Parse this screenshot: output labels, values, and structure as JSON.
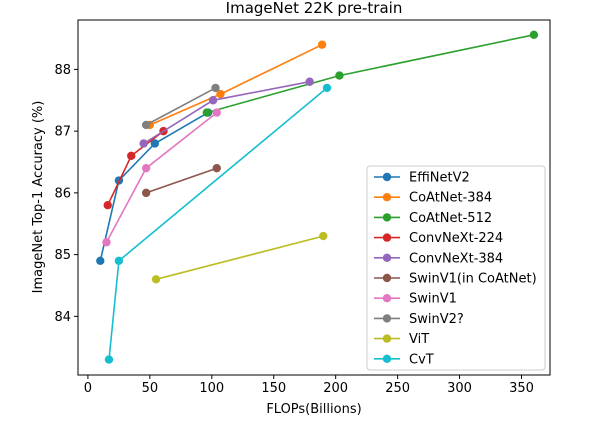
{
  "chart_data": {
    "type": "line",
    "title": "ImageNet 22K pre-train",
    "xlabel": "FLOPs(Billions)",
    "ylabel": "ImageNet Top-1 Accuracy (%)",
    "xlim": [
      -8,
      373
    ],
    "ylim": [
      83.05,
      88.8
    ],
    "xticks": [
      0,
      50,
      100,
      150,
      200,
      250,
      300,
      350
    ],
    "yticks": [
      84,
      85,
      86,
      87,
      88
    ],
    "legend_position": "lower-right",
    "series": [
      {
        "name": "EffiNetV2",
        "color": "#1f77b4",
        "x": [
          10,
          25,
          54,
          97
        ],
        "y": [
          84.9,
          86.2,
          86.8,
          87.3
        ]
      },
      {
        "name": "CoAtNet-384",
        "color": "#ff7f0e",
        "x": [
          50,
          107,
          189
        ],
        "y": [
          87.1,
          87.6,
          88.4
        ]
      },
      {
        "name": "CoAtNet-512",
        "color": "#2ca02c",
        "x": [
          96,
          203,
          360
        ],
        "y": [
          87.3,
          87.9,
          88.56
        ]
      },
      {
        "name": "ConvNeXt-224",
        "color": "#d62728",
        "x": [
          16,
          35,
          61
        ],
        "y": [
          85.8,
          86.6,
          87.0
        ]
      },
      {
        "name": "ConvNeXt-384",
        "color": "#9467bd",
        "x": [
          45,
          101,
          179
        ],
        "y": [
          86.8,
          87.5,
          87.8
        ]
      },
      {
        "name": "SwinV1(in CoAtNet)",
        "color": "#8c564b",
        "x": [
          47,
          104
        ],
        "y": [
          86.0,
          86.4
        ]
      },
      {
        "name": "SwinV1",
        "color": "#e377c2",
        "x": [
          15,
          47,
          104
        ],
        "y": [
          85.2,
          86.4,
          87.3
        ]
      },
      {
        "name": "SwinV2?",
        "color": "#7f7f7f",
        "x": [
          47,
          103
        ],
        "y": [
          87.1,
          87.7
        ]
      },
      {
        "name": "ViT",
        "color": "#bcbd22",
        "x": [
          55,
          190
        ],
        "y": [
          84.6,
          85.3
        ]
      },
      {
        "name": "CvT",
        "color": "#17becf",
        "x": [
          17,
          25,
          193
        ],
        "y": [
          83.3,
          84.9,
          87.7
        ]
      }
    ]
  }
}
